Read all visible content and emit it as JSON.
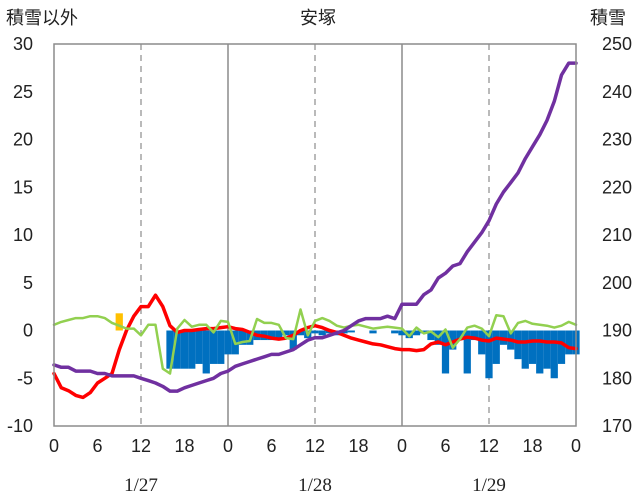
{
  "chart_data": {
    "type": "line",
    "title": "安塚",
    "ylabel_left": "積雪以外",
    "ylabel_right": "積雪",
    "ylim_left": [
      -10,
      30
    ],
    "ylim_right": [
      170,
      250
    ],
    "yticks_left": [
      "30",
      "25",
      "20",
      "15",
      "10",
      "5",
      "0",
      "-5",
      "-10"
    ],
    "yticks_right": [
      "250",
      "240",
      "230",
      "220",
      "210",
      "200",
      "190",
      "180",
      "170"
    ],
    "x_hours": [
      0,
      72
    ],
    "xtick_labels": [
      "0",
      "6",
      "12",
      "18",
      "0",
      "6",
      "12",
      "18",
      "0",
      "6",
      "12",
      "18",
      "0"
    ],
    "date_labels": [
      "1/27",
      "1/28",
      "1/29"
    ],
    "grid": "dashed vertical lines at 12h, solid vertical lines at day boundaries",
    "colors": {
      "temperature": "#ff0000",
      "snow_depth": "#7030a0",
      "wind": "#92d050",
      "precipitation": "#ffc000",
      "snowfall_change": "#0070c0"
    },
    "series": [
      {
        "key": "temperature",
        "axis": "left",
        "points": [
          [
            0,
            -4.5
          ],
          [
            1,
            -6
          ],
          [
            2,
            -6.3
          ],
          [
            3,
            -6.8
          ],
          [
            4,
            -7
          ],
          [
            5,
            -6.5
          ],
          [
            6,
            -5.5
          ],
          [
            7,
            -5
          ],
          [
            8,
            -4.5
          ],
          [
            9,
            -2
          ],
          [
            10,
            0
          ],
          [
            11,
            1.5
          ],
          [
            12,
            2.5
          ],
          [
            13,
            2.5
          ],
          [
            14,
            3.7
          ],
          [
            15,
            2.5
          ],
          [
            16,
            0.5
          ],
          [
            17,
            -0.2
          ],
          [
            18,
            0
          ],
          [
            19,
            0
          ],
          [
            20,
            0.1
          ],
          [
            21,
            0.2
          ],
          [
            22,
            0.2
          ],
          [
            23,
            0.3
          ],
          [
            24,
            0.4
          ],
          [
            25,
            0.2
          ],
          [
            26,
            0.1
          ],
          [
            27,
            -0.2
          ],
          [
            28,
            -0.5
          ],
          [
            29,
            -0.6
          ],
          [
            30,
            -0.8
          ],
          [
            31,
            -0.9
          ],
          [
            32,
            -0.8
          ],
          [
            33,
            -0.5
          ],
          [
            34,
            0
          ],
          [
            35,
            0.3
          ],
          [
            36,
            0.5
          ],
          [
            37,
            0.3
          ],
          [
            38,
            0
          ],
          [
            39,
            -0.2
          ],
          [
            40,
            -0.5
          ],
          [
            41,
            -0.8
          ],
          [
            42,
            -1
          ],
          [
            43,
            -1.2
          ],
          [
            44,
            -1.4
          ],
          [
            45,
            -1.5
          ],
          [
            46,
            -1.7
          ],
          [
            47,
            -1.9
          ],
          [
            48,
            -2
          ],
          [
            49,
            -2
          ],
          [
            50,
            -2.1
          ],
          [
            51,
            -2
          ],
          [
            52,
            -1.4
          ],
          [
            53,
            -1.2
          ],
          [
            54,
            -1.5
          ],
          [
            55,
            -1.2
          ],
          [
            56,
            -0.9
          ],
          [
            57,
            -0.7
          ],
          [
            58,
            -0.8
          ],
          [
            59,
            -1
          ],
          [
            60,
            -1.1
          ],
          [
            61,
            -0.8
          ],
          [
            62,
            -0.9
          ],
          [
            63,
            -1
          ],
          [
            64,
            -1.2
          ],
          [
            65,
            -1.2
          ],
          [
            66,
            -1.1
          ],
          [
            67,
            -1.1
          ],
          [
            68,
            -1.2
          ],
          [
            69,
            -1.2
          ],
          [
            70,
            -1.3
          ],
          [
            71,
            -1.8
          ],
          [
            72,
            -1.9
          ]
        ]
      },
      {
        "key": "wind",
        "axis": "left",
        "points": [
          [
            0,
            0.6
          ],
          [
            1,
            0.9
          ],
          [
            2,
            1.1
          ],
          [
            3,
            1.3
          ],
          [
            4,
            1.3
          ],
          [
            5,
            1.5
          ],
          [
            6,
            1.5
          ],
          [
            7,
            1.3
          ],
          [
            8,
            0.8
          ],
          [
            9,
            0.5
          ],
          [
            10,
            0.2
          ],
          [
            11,
            0.2
          ],
          [
            12,
            -0.5
          ],
          [
            13,
            0.6
          ],
          [
            14,
            0.6
          ],
          [
            15,
            -4
          ],
          [
            16,
            -4.5
          ],
          [
            17,
            0.2
          ],
          [
            18,
            1.1
          ],
          [
            19,
            0.4
          ],
          [
            20,
            0.6
          ],
          [
            21,
            0.6
          ],
          [
            22,
            -0.2
          ],
          [
            23,
            1
          ],
          [
            24,
            0.9
          ],
          [
            25,
            -1.4
          ],
          [
            26,
            -1.2
          ],
          [
            27,
            -1.1
          ],
          [
            28,
            1.2
          ],
          [
            29,
            0.8
          ],
          [
            30,
            0.8
          ],
          [
            31,
            0.6
          ],
          [
            32,
            -0.8
          ],
          [
            33,
            -0.9
          ],
          [
            34,
            2.2
          ],
          [
            35,
            -0.5
          ],
          [
            36,
            1
          ],
          [
            37,
            1.3
          ],
          [
            38,
            1
          ],
          [
            39,
            0.5
          ],
          [
            40,
            0.3
          ],
          [
            41,
            0.5
          ],
          [
            42,
            0.6
          ],
          [
            43,
            0.4
          ],
          [
            44,
            0.2
          ],
          [
            45,
            0.3
          ],
          [
            46,
            0.4
          ],
          [
            47,
            0.3
          ],
          [
            48,
            0.2
          ],
          [
            49,
            -0.6
          ],
          [
            50,
            0.3
          ],
          [
            51,
            -0.3
          ],
          [
            52,
            -0.1
          ],
          [
            53,
            -0.7
          ],
          [
            54,
            0.1
          ],
          [
            55,
            -1.8
          ],
          [
            56,
            -0.9
          ],
          [
            57,
            0.3
          ],
          [
            58,
            0.5
          ],
          [
            59,
            0.2
          ],
          [
            60,
            -0.6
          ],
          [
            61,
            1.6
          ],
          [
            62,
            1.5
          ],
          [
            63,
            -0.3
          ],
          [
            64,
            0.8
          ],
          [
            65,
            1
          ],
          [
            66,
            0.7
          ],
          [
            67,
            0.6
          ],
          [
            68,
            0.5
          ],
          [
            69,
            0.3
          ],
          [
            70,
            0.5
          ],
          [
            71,
            0.9
          ],
          [
            72,
            0.6
          ]
        ]
      },
      {
        "key": "snow_depth",
        "axis": "right",
        "points": [
          [
            0,
            182.8
          ],
          [
            1,
            182.3
          ],
          [
            2,
            182.3
          ],
          [
            3,
            181.5
          ],
          [
            4,
            181.5
          ],
          [
            5,
            181.5
          ],
          [
            6,
            181
          ],
          [
            7,
            181
          ],
          [
            8,
            180.5
          ],
          [
            9,
            180.5
          ],
          [
            10,
            180.5
          ],
          [
            11,
            180.5
          ],
          [
            12,
            180
          ],
          [
            13,
            179.5
          ],
          [
            14,
            179
          ],
          [
            15,
            178.3
          ],
          [
            16,
            177.3
          ],
          [
            17,
            177.3
          ],
          [
            18,
            178
          ],
          [
            19,
            178.5
          ],
          [
            20,
            179
          ],
          [
            21,
            179.5
          ],
          [
            22,
            180
          ],
          [
            23,
            181
          ],
          [
            24,
            181.5
          ],
          [
            25,
            182.5
          ],
          [
            26,
            183
          ],
          [
            27,
            183.5
          ],
          [
            28,
            184
          ],
          [
            29,
            184.5
          ],
          [
            30,
            185
          ],
          [
            31,
            185
          ],
          [
            32,
            185.5
          ],
          [
            33,
            186
          ],
          [
            34,
            187
          ],
          [
            35,
            188
          ],
          [
            36,
            188.5
          ],
          [
            37,
            188.5
          ],
          [
            38,
            189
          ],
          [
            39,
            189.5
          ],
          [
            40,
            190
          ],
          [
            41,
            191
          ],
          [
            42,
            192
          ],
          [
            43,
            192.5
          ],
          [
            44,
            192.5
          ],
          [
            45,
            192.5
          ],
          [
            46,
            193
          ],
          [
            47,
            192.5
          ],
          [
            48,
            195.5
          ],
          [
            49,
            195.5
          ],
          [
            50,
            195.5
          ],
          [
            51,
            197.5
          ],
          [
            52,
            198.5
          ],
          [
            53,
            201
          ],
          [
            54,
            202
          ],
          [
            55,
            203.5
          ],
          [
            56,
            204
          ],
          [
            57,
            206.5
          ],
          [
            58,
            208.5
          ],
          [
            59,
            210.5
          ],
          [
            60,
            213
          ],
          [
            61,
            216.5
          ],
          [
            62,
            219
          ],
          [
            63,
            221
          ],
          [
            64,
            223
          ],
          [
            65,
            226
          ],
          [
            66,
            228.5
          ],
          [
            67,
            231
          ],
          [
            68,
            234
          ],
          [
            69,
            238
          ],
          [
            70,
            243.5
          ],
          [
            71,
            246
          ],
          [
            72,
            246
          ]
        ]
      }
    ],
    "bars": [
      {
        "key": "snowfall_change",
        "axis": "left",
        "values": [
          [
            16,
            -4
          ],
          [
            17,
            -4
          ],
          [
            18,
            -4
          ],
          [
            19,
            -4
          ],
          [
            20,
            -3.5
          ],
          [
            21,
            -4.5
          ],
          [
            22,
            -3.5
          ],
          [
            23,
            -3.5
          ],
          [
            24,
            -2.5
          ],
          [
            25,
            -2.5
          ],
          [
            26,
            -1.5
          ],
          [
            27,
            -1.5
          ],
          [
            28,
            -1
          ],
          [
            29,
            -1
          ],
          [
            30,
            -1
          ],
          [
            31,
            -1
          ],
          [
            32,
            -0.5
          ],
          [
            33,
            -2
          ],
          [
            34,
            -0.5
          ],
          [
            35,
            -0.8
          ],
          [
            36,
            -0.3
          ],
          [
            37,
            -0.5
          ],
          [
            38,
            -0.3
          ],
          [
            39,
            -0.5
          ],
          [
            40,
            -0.3
          ],
          [
            41,
            -0.2
          ],
          [
            44,
            -0.3
          ],
          [
            47,
            -0.3
          ],
          [
            48,
            -0.5
          ],
          [
            49,
            -0.8
          ],
          [
            50,
            -0.5
          ],
          [
            51,
            -0.3
          ],
          [
            52,
            -1
          ],
          [
            53,
            -1.5
          ],
          [
            54,
            -4.5
          ],
          [
            55,
            -2
          ],
          [
            56,
            -1
          ],
          [
            57,
            -4.5
          ],
          [
            58,
            -1
          ],
          [
            59,
            -2.5
          ],
          [
            60,
            -5
          ],
          [
            61,
            -3.5
          ],
          [
            62,
            -1.5
          ],
          [
            63,
            -2
          ],
          [
            64,
            -3
          ],
          [
            65,
            -4
          ],
          [
            66,
            -3.5
          ],
          [
            67,
            -4.5
          ],
          [
            68,
            -4
          ],
          [
            69,
            -5
          ],
          [
            70,
            -3.5
          ],
          [
            71,
            -2.5
          ],
          [
            72,
            -2.5
          ]
        ]
      },
      {
        "key": "precipitation",
        "axis": "left",
        "values": [
          [
            9,
            1.8
          ]
        ]
      }
    ]
  }
}
